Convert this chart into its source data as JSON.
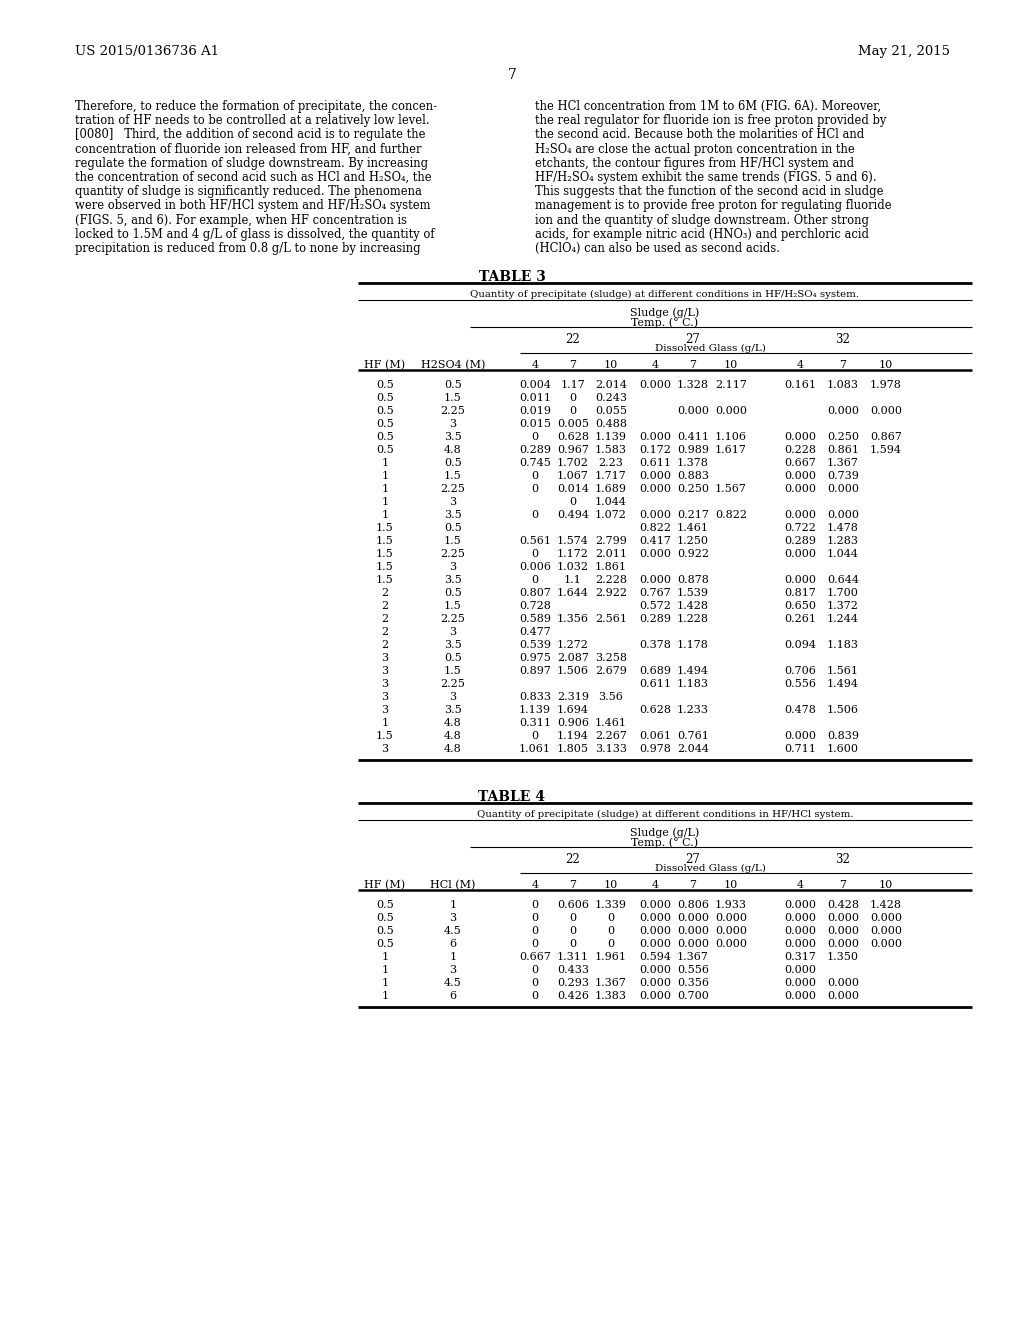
{
  "header_left": "US 2015/0136736 A1",
  "header_right": "May 21, 2015",
  "page_number": "7",
  "bg_color": "#ffffff",
  "text_color": "#000000",
  "left_col_text": [
    "Therefore, to reduce the formation of precipitate, the concen-",
    "tration of HF needs to be controlled at a relatively low level.",
    "[0080]   Third, the addition of second acid is to regulate the",
    "concentration of fluoride ion released from HF, and further",
    "regulate the formation of sludge downstream. By increasing",
    "the concentration of second acid such as HCl and H₂SO₄, the",
    "quantity of sludge is significantly reduced. The phenomena",
    "were observed in both HF/HCl system and HF/H₂SO₄ system",
    "(FIGS. 5, and 6). For example, when HF concentration is",
    "locked to 1.5M and 4 g/L of glass is dissolved, the quantity of",
    "precipitation is reduced from 0.8 g/L to none by increasing"
  ],
  "right_col_text": [
    "the HCl concentration from 1M to 6M (FIG. 6A). Moreover,",
    "the real regulator for fluoride ion is free proton provided by",
    "the second acid. Because both the molarities of HCl and",
    "H₂SO₄ are close the actual proton concentration in the",
    "etchants, the contour figures from HF/HCl system and",
    "HF/H₂SO₄ system exhibit the same trends (FIGS. 5 and 6).",
    "This suggests that the function of the second acid in sludge",
    "management is to provide free proton for regulating fluoride",
    "ion and the quantity of sludge downstream. Other strong",
    "acids, for example nitric acid (HNO₃) and perchloric acid",
    "(HClO₄) can also be used as second acids."
  ],
  "table3_title": "TABLE 3",
  "table3_subtitle": "Quantity of precipitate (sludge) at different conditions in HF/H₂SO₄ system.",
  "table3_col_header1": "Sludge (g/L)",
  "table3_col_header2": "Temp. (° C.)",
  "table3_temp_22": "22",
  "table3_temp_27": "27",
  "table3_temp_32": "32",
  "table3_dissolved": "Dissolved Glass (g/L)",
  "table3_hf_label": "HF (M)",
  "table3_h2so4_label": "H2SO4 (M)",
  "table3_dg_cols": [
    "4",
    "7",
    "10",
    "4",
    "7",
    "10",
    "4",
    "7",
    "10"
  ],
  "table3_data": [
    [
      "0.5",
      "0.5",
      "0.004",
      "1.17",
      "2.014",
      "0.000",
      "1.328",
      "2.117",
      "0.161",
      "1.083",
      "1.978"
    ],
    [
      "0.5",
      "1.5",
      "0.011",
      "0",
      "0.243",
      "",
      "",
      "",
      "",
      "",
      ""
    ],
    [
      "0.5",
      "2.25",
      "0.019",
      "0",
      "0.055",
      "",
      "0.000",
      "0.000",
      "",
      "0.000",
      "0.000"
    ],
    [
      "0.5",
      "3",
      "0.015",
      "0.005",
      "0.488",
      "",
      "",
      "",
      "",
      "",
      ""
    ],
    [
      "0.5",
      "3.5",
      "0",
      "0.628",
      "1.139",
      "0.000",
      "0.411",
      "1.106",
      "0.000",
      "0.250",
      "0.867"
    ],
    [
      "0.5",
      "4.8",
      "0.289",
      "0.967",
      "1.583",
      "0.172",
      "0.989",
      "1.617",
      "0.228",
      "0.861",
      "1.594"
    ],
    [
      "1",
      "0.5",
      "0.745",
      "1.702",
      "2.23",
      "0.611",
      "1.378",
      "",
      "0.667",
      "1.367",
      ""
    ],
    [
      "1",
      "1.5",
      "0",
      "1.067",
      "1.717",
      "0.000",
      "0.883",
      "",
      "0.000",
      "0.739",
      ""
    ],
    [
      "1",
      "2.25",
      "0",
      "0.014",
      "1.689",
      "0.000",
      "0.250",
      "1.567",
      "0.000",
      "0.000",
      ""
    ],
    [
      "1",
      "3",
      "",
      "0",
      "1.044",
      "",
      "",
      "",
      "",
      "",
      ""
    ],
    [
      "1",
      "3.5",
      "0",
      "0.494",
      "1.072",
      "0.000",
      "0.217",
      "0.822",
      "0.000",
      "0.000",
      ""
    ],
    [
      "1.5",
      "0.5",
      "",
      "",
      "",
      "0.822",
      "1.461",
      "",
      "0.722",
      "1.478",
      ""
    ],
    [
      "1.5",
      "1.5",
      "0.561",
      "1.574",
      "2.799",
      "0.417",
      "1.250",
      "",
      "0.289",
      "1.283",
      ""
    ],
    [
      "1.5",
      "2.25",
      "0",
      "1.172",
      "2.011",
      "0.000",
      "0.922",
      "",
      "0.000",
      "1.044",
      ""
    ],
    [
      "1.5",
      "3",
      "0.006",
      "1.032",
      "1.861",
      "",
      "",
      "",
      "",
      "",
      ""
    ],
    [
      "1.5",
      "3.5",
      "0",
      "1.1",
      "2.228",
      "0.000",
      "0.878",
      "",
      "0.000",
      "0.644",
      ""
    ],
    [
      "2",
      "0.5",
      "0.807",
      "1.644",
      "2.922",
      "0.767",
      "1.539",
      "",
      "0.817",
      "1.700",
      ""
    ],
    [
      "2",
      "1.5",
      "0.728",
      "",
      "",
      "0.572",
      "1.428",
      "",
      "0.650",
      "1.372",
      ""
    ],
    [
      "2",
      "2.25",
      "0.589",
      "1.356",
      "2.561",
      "0.289",
      "1.228",
      "",
      "0.261",
      "1.244",
      ""
    ],
    [
      "2",
      "3",
      "0.477",
      "",
      "",
      "",
      "",
      "",
      "",
      "",
      ""
    ],
    [
      "2",
      "3.5",
      "0.539",
      "1.272",
      "",
      "0.378",
      "1.178",
      "",
      "0.094",
      "1.183",
      ""
    ],
    [
      "3",
      "0.5",
      "0.975",
      "2.087",
      "3.258",
      "",
      "",
      "",
      "",
      "",
      ""
    ],
    [
      "3",
      "1.5",
      "0.897",
      "1.506",
      "2.679",
      "0.689",
      "1.494",
      "",
      "0.706",
      "1.561",
      ""
    ],
    [
      "3",
      "2.25",
      "",
      "",
      "",
      "0.611",
      "1.183",
      "",
      "0.556",
      "1.494",
      ""
    ],
    [
      "3",
      "3",
      "0.833",
      "2.319",
      "3.56",
      "",
      "",
      "",
      "",
      "",
      ""
    ],
    [
      "3",
      "3.5",
      "1.139",
      "1.694",
      "",
      "0.628",
      "1.233",
      "",
      "0.478",
      "1.506",
      ""
    ],
    [
      "1",
      "4.8",
      "0.311",
      "0.906",
      "1.461",
      "",
      "",
      "",
      "",
      "",
      ""
    ],
    [
      "1.5",
      "4.8",
      "0",
      "1.194",
      "2.267",
      "0.061",
      "0.761",
      "",
      "0.000",
      "0.839",
      ""
    ],
    [
      "3",
      "4.8",
      "1.061",
      "1.805",
      "3.133",
      "0.978",
      "2.044",
      "",
      "0.711",
      "1.600",
      ""
    ]
  ],
  "table4_title": "TABLE 4",
  "table4_subtitle": "Quantity of precipitate (sludge) at different conditions in HF/HCl system.",
  "table4_hf_label": "HF (M)",
  "table4_hcl_label": "HCl (M)",
  "table4_data": [
    [
      "0.5",
      "1",
      "0",
      "0.606",
      "1.339",
      "0.000",
      "0.806",
      "1.933",
      "0.000",
      "0.428",
      "1.428"
    ],
    [
      "0.5",
      "3",
      "0",
      "0",
      "0",
      "0.000",
      "0.000",
      "0.000",
      "0.000",
      "0.000",
      "0.000"
    ],
    [
      "0.5",
      "4.5",
      "0",
      "0",
      "0",
      "0.000",
      "0.000",
      "0.000",
      "0.000",
      "0.000",
      "0.000"
    ],
    [
      "0.5",
      "6",
      "0",
      "0",
      "0",
      "0.000",
      "0.000",
      "0.000",
      "0.000",
      "0.000",
      "0.000"
    ],
    [
      "1",
      "1",
      "0.667",
      "1.311",
      "1.961",
      "0.594",
      "1.367",
      "",
      "0.317",
      "1.350",
      ""
    ],
    [
      "1",
      "3",
      "0",
      "0.433",
      "",
      "0.000",
      "0.556",
      "",
      "0.000",
      "",
      ""
    ],
    [
      "1",
      "4.5",
      "0",
      "0.293",
      "1.367",
      "0.000",
      "0.356",
      "",
      "0.000",
      "0.000",
      ""
    ],
    [
      "1",
      "6",
      "0",
      "0.426",
      "1.383",
      "0.000",
      "0.700",
      "",
      "0.000",
      "0.000",
      ""
    ]
  ]
}
